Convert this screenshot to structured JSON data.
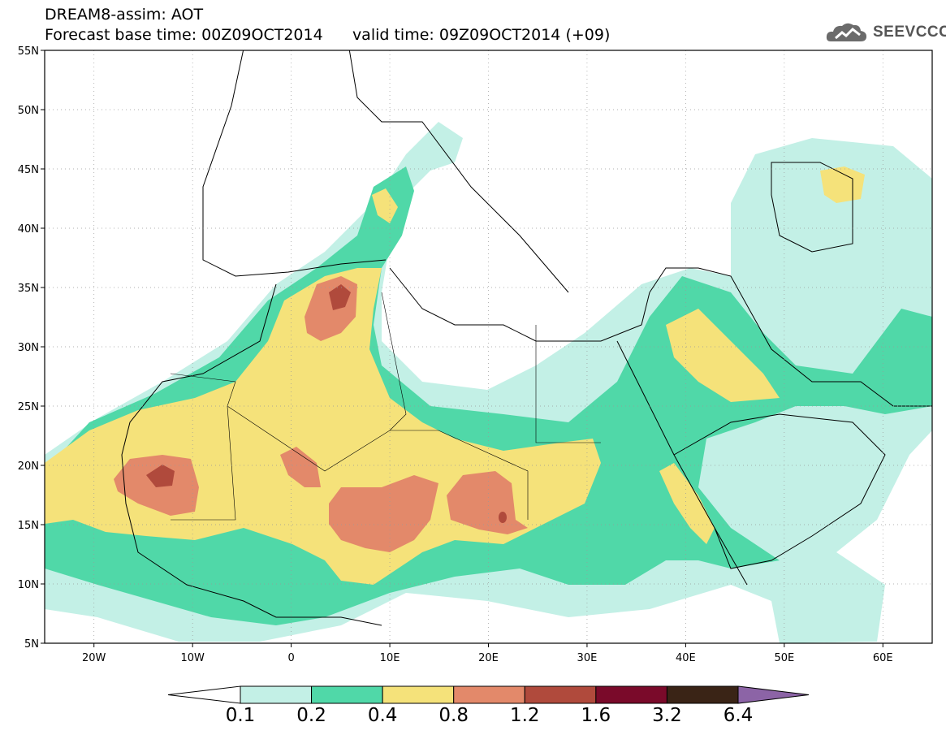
{
  "title": {
    "line1": "DREAM8-assim: AOT",
    "line2_base": "Forecast base time: 00Z09OCT2014",
    "line2_valid": "valid time: 09Z09OCT2014 (+09)"
  },
  "logo": {
    "text": "SEEVCCC",
    "icon": "cloud-icon"
  },
  "map": {
    "lat_labels": [
      "55N",
      "50N",
      "45N",
      "40N",
      "35N",
      "30N",
      "25N",
      "20N",
      "15N",
      "10N",
      "5N"
    ],
    "lon_labels": [
      "20W",
      "10W",
      "0",
      "10E",
      "20E",
      "30E",
      "40E",
      "50E",
      "60E"
    ],
    "lat_range": [
      5,
      55
    ],
    "lon_range": [
      -25,
      65
    ],
    "grid": "dotted"
  },
  "colorbar": {
    "levels": [
      "0.1",
      "0.2",
      "0.4",
      "0.8",
      "1.2",
      "1.6",
      "3.2",
      "6.4"
    ],
    "colors": [
      "#c3f0e6",
      "#50d8a8",
      "#f5e27a",
      "#e3896a",
      "#b04a3c",
      "#7a0a2a",
      "#3a2416"
    ],
    "under_color": "#ffffff",
    "over_color": "#8c64a6"
  }
}
